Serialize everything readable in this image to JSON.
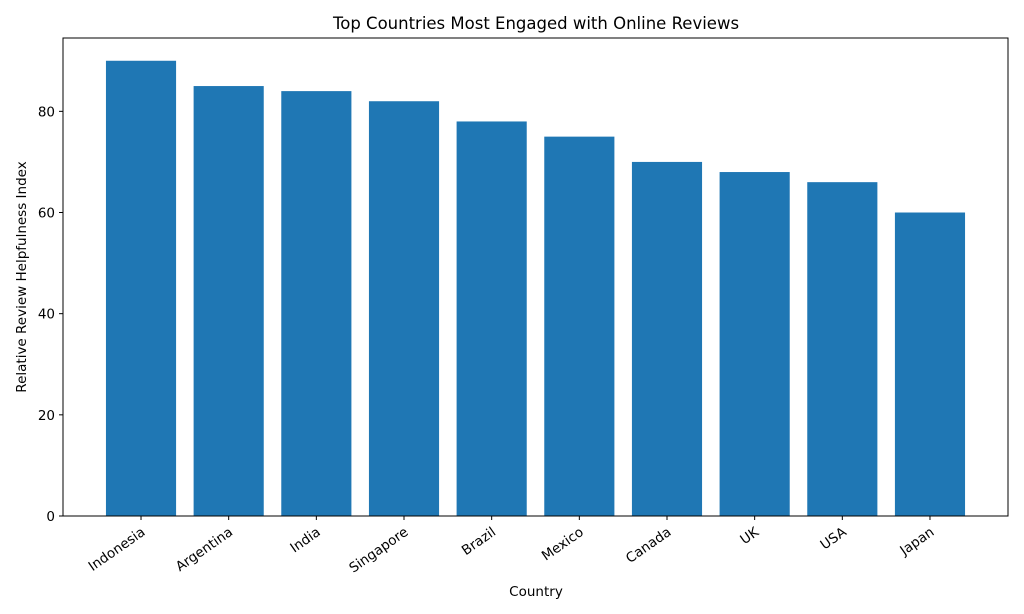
{
  "chart_data": {
    "type": "bar",
    "title": "Top Countries Most Engaged with Online Reviews",
    "xlabel": "Country",
    "ylabel": "Relative Review Helpfulness Index",
    "categories": [
      "Indonesia",
      "Argentina",
      "India",
      "Singapore",
      "Brazil",
      "Mexico",
      "Canada",
      "UK",
      "USA",
      "Japan"
    ],
    "values": [
      90,
      85,
      84,
      82,
      78,
      75,
      70,
      68,
      66,
      60
    ],
    "ylim": [
      0,
      94.5
    ],
    "yticks": [
      0,
      20,
      40,
      60,
      80
    ],
    "grid": false,
    "color": "#1f77b4"
  }
}
